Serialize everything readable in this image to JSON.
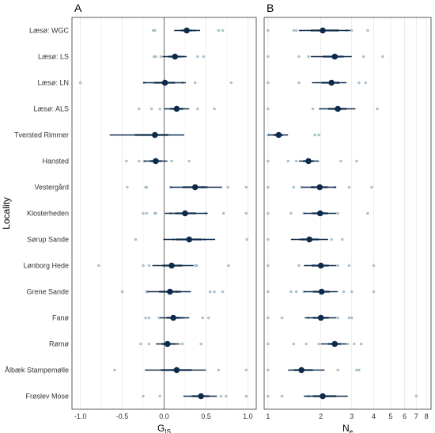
{
  "chart_data": [
    {
      "type": "scatter",
      "panel": "A",
      "xlabel_main": "G",
      "xlabel_sub": "IS",
      "ylabel": "Locality",
      "xlim": [
        -1.1,
        1.1
      ],
      "x_ticks": [
        -1.0,
        -0.5,
        0.0,
        0.5,
        1.0
      ],
      "x_tick_labels": [
        "-1.0",
        "-0.5",
        "0.0",
        "0.5",
        "1.0"
      ],
      "reference_line": 0,
      "categories": [
        "Læsø: WGC",
        "Læsø: LS",
        "Læsø: LN",
        "Læsø: ALS",
        "Tversted Rimmer",
        "Hansted",
        "Vestergård",
        "Klosterheden",
        "Sørup Sande",
        "Lønborg Hede",
        "Grene Sande",
        "Fanø",
        "Rømø",
        "Ålbæk Stampemølle",
        "Frøslev Mose"
      ],
      "series": [
        {
          "name": "",
          "kind": "mean_ci",
          "values": [
            {
              "mean": 0.27,
              "lo": 0.12,
              "hi": 0.43,
              "lo_inner": 0.2,
              "hi_inner": 0.34
            },
            {
              "mean": 0.13,
              "lo": -0.02,
              "hi": 0.27,
              "lo_inner": 0.05,
              "hi_inner": 0.2
            },
            {
              "mean": 0.01,
              "lo": -0.25,
              "hi": 0.26,
              "lo_inner": -0.12,
              "hi_inner": 0.13
            },
            {
              "mean": 0.15,
              "lo": 0.0,
              "hi": 0.3,
              "lo_inner": 0.07,
              "hi_inner": 0.22
            },
            {
              "mean": -0.11,
              "lo": -0.65,
              "hi": 0.24,
              "lo_inner": -0.35,
              "hi_inner": 0.05
            },
            {
              "mean": -0.1,
              "lo": -0.24,
              "hi": 0.04,
              "lo_inner": -0.17,
              "hi_inner": -0.03
            },
            {
              "mean": 0.37,
              "lo": 0.07,
              "hi": 0.68,
              "lo_inner": 0.22,
              "hi_inner": 0.52
            },
            {
              "mean": 0.25,
              "lo": 0.01,
              "hi": 0.52,
              "lo_inner": 0.13,
              "hi_inner": 0.38
            },
            {
              "mean": 0.3,
              "lo": -0.01,
              "hi": 0.61,
              "lo_inner": 0.14,
              "hi_inner": 0.45
            },
            {
              "mean": 0.09,
              "lo": -0.14,
              "hi": 0.35,
              "lo_inner": -0.02,
              "hi_inner": 0.22
            },
            {
              "mean": 0.07,
              "lo": -0.2,
              "hi": 0.32,
              "lo_inner": -0.06,
              "hi_inner": 0.2
            },
            {
              "mean": 0.11,
              "lo": -0.05,
              "hi": 0.3,
              "lo_inner": 0.03,
              "hi_inner": 0.2
            },
            {
              "mean": 0.04,
              "lo": -0.1,
              "hi": 0.17,
              "lo_inner": -0.03,
              "hi_inner": 0.1
            },
            {
              "mean": 0.15,
              "lo": -0.23,
              "hi": 0.5,
              "lo_inner": -0.04,
              "hi_inner": 0.33
            },
            {
              "mean": 0.44,
              "lo": 0.23,
              "hi": 0.63,
              "lo_inner": 0.33,
              "hi_inner": 0.54
            }
          ]
        },
        {
          "name": "",
          "kind": "points",
          "values": [
            [
              -0.13,
              -0.11,
              0.36,
              0.65,
              0.7
            ],
            [
              -0.12,
              -0.1,
              -0.04,
              0.22,
              0.4,
              0.47
            ],
            [
              -1.0,
              -0.24,
              0.22,
              0.37,
              0.8
            ],
            [
              -0.3,
              -0.15,
              -0.05,
              0.22,
              0.4,
              0.6
            ],
            [
              -0.12,
              -0.1,
              0.0
            ],
            [
              -0.45,
              -0.3,
              -0.24,
              -0.13,
              0.09,
              0.3
            ],
            [
              -0.44,
              -0.22,
              -0.21,
              0.08,
              0.46,
              0.68,
              0.76,
              0.98
            ],
            [
              -0.25,
              -0.21,
              -0.11,
              -0.1,
              0.08,
              0.5,
              0.71,
              0.98
            ],
            [
              -0.34,
              0.11,
              0.48,
              0.99
            ],
            [
              -0.78,
              -0.25,
              -0.18,
              0.18,
              0.37,
              0.39,
              0.77
            ],
            [
              -0.5,
              -0.21,
              -0.2,
              0.15,
              0.55,
              0.6,
              0.7
            ],
            [
              -0.22,
              -0.18,
              -0.06,
              0.22,
              0.46,
              0.53
            ],
            [
              -0.28,
              -0.18,
              0.12,
              0.18,
              0.22,
              0.44
            ],
            [
              -0.59,
              0.11,
              0.65,
              0.98
            ],
            [
              -0.25,
              -0.05,
              0.45,
              0.68,
              0.74,
              0.98
            ]
          ]
        }
      ]
    },
    {
      "type": "scatter",
      "panel": "B",
      "xlabel_main": "N",
      "xlabel_sub": "e",
      "x_scale": "log",
      "xlim": [
        0.95,
        8.5
      ],
      "x_ticks": [
        1,
        2,
        3,
        4,
        5,
        6,
        7,
        8
      ],
      "x_tick_labels": [
        "1",
        "2",
        "3",
        "4",
        "5",
        "6",
        "7",
        "8"
      ],
      "series": [
        {
          "name": "",
          "kind": "mean_ci",
          "values": [
            {
              "mean": 2.05,
              "lo": 1.5,
              "hi": 2.95,
              "lo_inner": 1.75,
              "hi_inner": 2.5
            },
            {
              "mean": 2.4,
              "lo": 1.75,
              "hi": 3.0,
              "lo_inner": 2.05,
              "hi_inner": 2.7
            },
            {
              "mean": 2.3,
              "lo": 1.78,
              "hi": 2.8,
              "lo_inner": 2.02,
              "hi_inner": 2.55
            },
            {
              "mean": 2.5,
              "lo": 1.95,
              "hi": 3.15,
              "lo_inner": 2.2,
              "hi_inner": 2.8
            },
            {
              "mean": 1.15,
              "lo": 1.0,
              "hi": 1.3,
              "lo_inner": 1.07,
              "hi_inner": 1.22
            },
            {
              "mean": 1.7,
              "lo": 1.5,
              "hi": 1.95,
              "lo_inner": 1.6,
              "hi_inner": 1.82
            },
            {
              "mean": 1.97,
              "lo": 1.55,
              "hi": 2.45,
              "lo_inner": 1.75,
              "hi_inner": 2.2
            },
            {
              "mean": 1.98,
              "lo": 1.6,
              "hi": 2.45,
              "lo_inner": 1.78,
              "hi_inner": 2.2
            },
            {
              "mean": 1.72,
              "lo": 1.35,
              "hi": 2.2,
              "lo_inner": 1.52,
              "hi_inner": 1.95
            },
            {
              "mean": 2.0,
              "lo": 1.6,
              "hi": 2.45,
              "lo_inner": 1.78,
              "hi_inner": 2.22
            },
            {
              "mean": 2.02,
              "lo": 1.6,
              "hi": 2.5,
              "lo_inner": 1.8,
              "hi_inner": 2.25
            },
            {
              "mean": 2.0,
              "lo": 1.62,
              "hi": 2.45,
              "lo_inner": 1.8,
              "hi_inner": 2.22
            },
            {
              "mean": 2.4,
              "lo": 2.0,
              "hi": 2.8,
              "lo_inner": 2.2,
              "hi_inner": 2.6
            },
            {
              "mean": 1.55,
              "lo": 1.3,
              "hi": 2.1,
              "lo_inner": 1.4,
              "hi_inner": 1.8
            },
            {
              "mean": 2.05,
              "lo": 1.6,
              "hi": 2.85,
              "lo_inner": 1.8,
              "hi_inner": 2.45
            }
          ]
        },
        {
          "name": "",
          "kind": "points",
          "values": [
            [
              1.0,
              1.4,
              1.45,
              2.5,
              2.8,
              3.0,
              3.7
            ],
            [
              1.0,
              1.5,
              1.7,
              2.5,
              3.5,
              4.5
            ],
            [
              1.0,
              1.5,
              2.3,
              2.5,
              3.3,
              3.6
            ],
            [
              1.0,
              1.8,
              2.4,
              2.6,
              4.2
            ],
            [
              1.0,
              1.1,
              1.85,
              1.95
            ],
            [
              1.0,
              1.3,
              1.45,
              1.6,
              2.6,
              3.2
            ],
            [
              1.0,
              1.4,
              1.55,
              1.8,
              2.4,
              2.9,
              3.9
            ],
            [
              1.0,
              1.35,
              1.6,
              2.1,
              2.5,
              3.7
            ],
            [
              1.0,
              1.6,
              2.3,
              2.65
            ],
            [
              1.0,
              1.5,
              1.8,
              2.5,
              2.9,
              4.0
            ],
            [
              1.0,
              1.35,
              1.45,
              1.6,
              2.7,
              3.0,
              4.0
            ],
            [
              1.0,
              1.2,
              1.7,
              2.5,
              2.9,
              3.0
            ],
            [
              1.0,
              1.4,
              1.65,
              1.95,
              2.85,
              3.1,
              3.4
            ],
            [
              1.0,
              2.5,
              3.2,
              3.3
            ],
            [
              1.0,
              1.2,
              1.7,
              7.0
            ]
          ]
        }
      ]
    }
  ]
}
